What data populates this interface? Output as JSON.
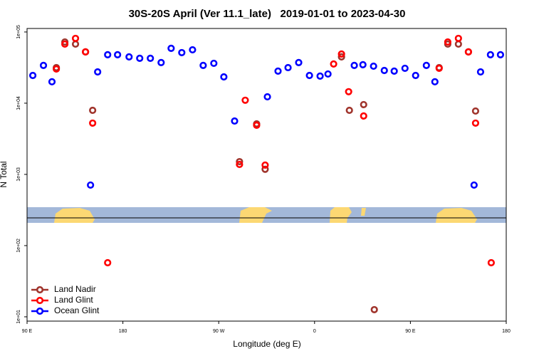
{
  "chart_data": {
    "type": "scatter",
    "title": "30S-20S April (Ver 11.1_late)   2019-01-01 to 2023-04-30",
    "xlabel": "Longitude (deg E)",
    "ylabel": "N Total",
    "log_y": true,
    "legend": "bottom left",
    "xlim": [
      90,
      540
    ],
    "xticks": [
      {
        "value": 90,
        "label": "90 E"
      },
      {
        "value": 180,
        "label": "180"
      },
      {
        "value": 270,
        "label": "90 W"
      },
      {
        "value": 360,
        "label": "0"
      },
      {
        "value": 450,
        "label": "90 E"
      },
      {
        "value": 540,
        "label": "180"
      }
    ],
    "ylim": [
      8.7,
      112000
    ],
    "yticks": [
      {
        "value": 100000,
        "label": "1e+05"
      },
      {
        "value": 10000,
        "label": "1e+04"
      },
      {
        "value": 1000,
        "label": "1e+03"
      },
      {
        "value": 100,
        "label": "1e+02"
      },
      {
        "value": 10,
        "label": "1e+01"
      }
    ],
    "series": [
      {
        "name": "Land Nadir",
        "color": "#a0342c",
        "x": [
          117.5,
          125.5,
          135.5,
          144.9,
          151.6,
          289.5,
          305.6,
          313.6,
          385.3,
          392.7,
          406.1,
          416.1,
          477.0,
          485.1,
          495.1,
          504.5,
          511.2
        ],
        "values": [
          31600,
          72400,
          67600,
          52500,
          7940,
          1510,
          5130,
          1180,
          44700,
          7940,
          9550,
          12.6,
          31600,
          67600,
          67600,
          52500,
          7760
        ]
      },
      {
        "name": "Land Glint",
        "color": "#ff0000",
        "x": [
          117.5,
          125.5,
          135.5,
          144.9,
          151.6,
          165.7,
          289.5,
          294.9,
          305.6,
          313.6,
          377.9,
          385.3,
          392.0,
          406.1,
          477.0,
          485.1,
          495.1,
          504.5,
          511.2,
          525.9
        ],
        "values": [
          30200,
          67600,
          81300,
          52500,
          5250,
          57.5,
          1380,
          11000,
          4900,
          1350,
          35500,
          49000,
          14500,
          6610,
          30900,
          72400,
          81300,
          52500,
          5250,
          57.5
        ]
      },
      {
        "name": "Ocean Glint",
        "color": "#0000ff",
        "x": [
          95.4,
          105.4,
          113.4,
          149.6,
          156.3,
          165.7,
          175.0,
          185.8,
          195.8,
          205.8,
          215.9,
          225.3,
          235.3,
          245.4,
          255.4,
          265.4,
          274.8,
          284.9,
          315.7,
          325.7,
          335.1,
          345.1,
          355.2,
          365.2,
          372.6,
          397.3,
          405.4,
          415.4,
          425.5,
          434.8,
          444.9,
          454.9,
          465.0,
          473.0,
          509.8,
          515.9,
          525.2,
          534.6
        ],
        "values": [
          24500,
          33900,
          20000,
          708,
          27500,
          47900,
          47900,
          44700,
          42700,
          42700,
          37200,
          58900,
          51300,
          56200,
          33900,
          36300,
          23400,
          5620,
          12300,
          28200,
          31600,
          37200,
          24500,
          24000,
          25700,
          33900,
          34700,
          33100,
          28800,
          28200,
          30900,
          24500,
          33900,
          20000,
          708,
          27500,
          47900,
          47900
        ]
      }
    ]
  }
}
